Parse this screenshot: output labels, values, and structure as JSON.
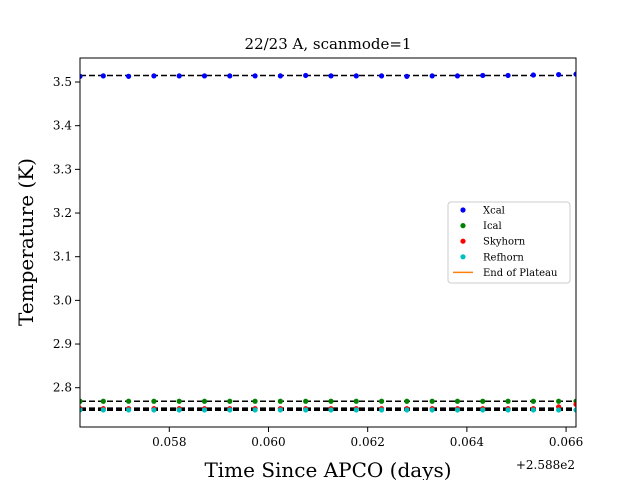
{
  "chart_data": {
    "type": "scatter",
    "title": "22/23 A, scanmode=1",
    "xlabel": "Time Since APCO (days)",
    "ylabel": "Temperature (K)",
    "x_offset_label": "+2.588e2",
    "xlim": [
      0.0562,
      0.0662
    ],
    "ylim": [
      2.71,
      3.555
    ],
    "x_ticks": [
      0.058,
      0.06,
      0.062,
      0.064,
      0.066
    ],
    "x_tick_labels": [
      "0.058",
      "0.060",
      "0.062",
      "0.064",
      "0.066"
    ],
    "y_ticks": [
      2.8,
      2.9,
      3.0,
      3.1,
      3.2,
      3.3,
      3.4,
      3.5
    ],
    "y_tick_labels": [
      "2.8",
      "2.9",
      "3.0",
      "3.1",
      "3.2",
      "3.3",
      "3.4",
      "3.5"
    ],
    "grid": false,
    "legend_position": "center-right",
    "x": [
      0.0562,
      0.05667,
      0.05718,
      0.05769,
      0.0582,
      0.05871,
      0.05922,
      0.05973,
      0.06024,
      0.06075,
      0.06126,
      0.06177,
      0.06228,
      0.06279,
      0.0633,
      0.06381,
      0.06432,
      0.06483,
      0.06534,
      0.06585,
      0.0662
    ],
    "series": [
      {
        "name": "Xcal",
        "color": "#0000ff",
        "values": [
          3.513,
          3.514,
          3.513,
          3.514,
          3.514,
          3.514,
          3.514,
          3.514,
          3.514,
          3.515,
          3.514,
          3.514,
          3.514,
          3.513,
          3.514,
          3.514,
          3.515,
          3.515,
          3.516,
          3.517,
          3.518
        ]
      },
      {
        "name": "Ical",
        "color": "#008000",
        "values": [
          2.769,
          2.769,
          2.769,
          2.769,
          2.769,
          2.769,
          2.769,
          2.769,
          2.769,
          2.769,
          2.769,
          2.769,
          2.769,
          2.769,
          2.769,
          2.769,
          2.769,
          2.769,
          2.769,
          2.769,
          2.769
        ]
      },
      {
        "name": "Skyhorn",
        "color": "#ff0000",
        "values": [
          2.752,
          2.752,
          2.752,
          2.752,
          2.752,
          2.752,
          2.752,
          2.752,
          2.752,
          2.752,
          2.752,
          2.752,
          2.752,
          2.752,
          2.752,
          2.752,
          2.752,
          2.752,
          2.752,
          2.756,
          2.762
        ]
      },
      {
        "name": "Refhorn",
        "color": "#00bfbf",
        "values": [
          2.749,
          2.749,
          2.749,
          2.749,
          2.749,
          2.749,
          2.749,
          2.749,
          2.749,
          2.749,
          2.749,
          2.749,
          2.749,
          2.749,
          2.749,
          2.749,
          2.749,
          2.749,
          2.749,
          2.749,
          2.749
        ]
      }
    ],
    "reference_lines": [
      {
        "y": 3.515,
        "color": "#000000",
        "style": "dashed",
        "width": 1.5
      },
      {
        "y": 2.769,
        "color": "#000000",
        "style": "dashed",
        "width": 1.5
      },
      {
        "y": 2.752,
        "color": "#000000",
        "style": "dashed",
        "width": 2.5
      },
      {
        "y": 2.749,
        "color": "#000000",
        "style": "dashed",
        "width": 2
      }
    ],
    "legend": [
      {
        "label": "Xcal",
        "color": "#0000ff",
        "marker": "dot"
      },
      {
        "label": "Ical",
        "color": "#008000",
        "marker": "dot"
      },
      {
        "label": "Skyhorn",
        "color": "#ff0000",
        "marker": "dot"
      },
      {
        "label": "Refhorn",
        "color": "#00bfbf",
        "marker": "dot"
      },
      {
        "label": "End of Plateau",
        "color": "#ff7f0e",
        "marker": "line"
      }
    ]
  }
}
